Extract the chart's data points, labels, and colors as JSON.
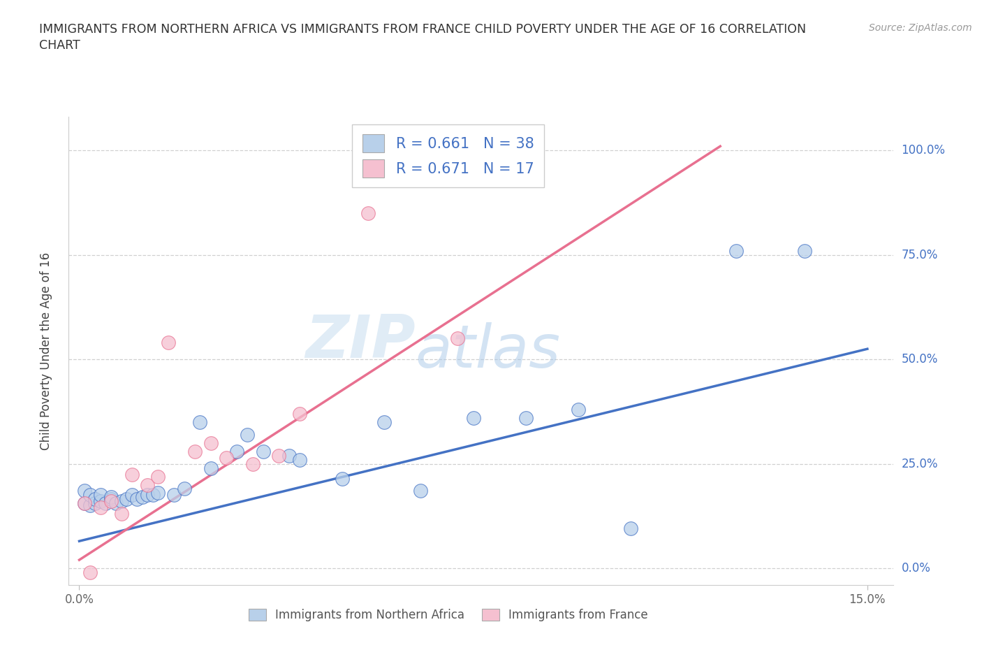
{
  "title_line1": "IMMIGRANTS FROM NORTHERN AFRICA VS IMMIGRANTS FROM FRANCE CHILD POVERTY UNDER THE AGE OF 16 CORRELATION",
  "title_line2": "CHART",
  "source": "Source: ZipAtlas.com",
  "ylabel": "Child Poverty Under the Age of 16",
  "xlim": [
    -0.002,
    0.155
  ],
  "ylim": [
    -0.04,
    1.08
  ],
  "ytick_vals": [
    0.0,
    0.25,
    0.5,
    0.75,
    1.0
  ],
  "ytick_labels": [
    "0.0%",
    "25.0%",
    "50.0%",
    "75.0%",
    "100.0%"
  ],
  "xtick_vals": [
    0.0,
    0.15
  ],
  "xtick_labels": [
    "0.0%",
    "15.0%"
  ],
  "color_blue": "#b8d0ea",
  "color_pink": "#f5c0d0",
  "line_blue": "#4472c4",
  "line_pink": "#e87090",
  "R_blue": 0.661,
  "N_blue": 38,
  "R_pink": 0.671,
  "N_pink": 17,
  "legend_label_blue": "Immigrants from Northern Africa",
  "legend_label_pink": "Immigrants from France",
  "watermark_zip": "ZIP",
  "watermark_atlas": "atlas",
  "blue_scatter_x": [
    0.001,
    0.001,
    0.002,
    0.002,
    0.003,
    0.003,
    0.004,
    0.004,
    0.005,
    0.006,
    0.006,
    0.007,
    0.008,
    0.009,
    0.01,
    0.011,
    0.012,
    0.013,
    0.014,
    0.015,
    0.018,
    0.02,
    0.023,
    0.025,
    0.03,
    0.032,
    0.035,
    0.04,
    0.042,
    0.05,
    0.058,
    0.065,
    0.075,
    0.085,
    0.095,
    0.105,
    0.125,
    0.138
  ],
  "blue_scatter_y": [
    0.155,
    0.185,
    0.15,
    0.175,
    0.155,
    0.165,
    0.16,
    0.175,
    0.155,
    0.165,
    0.17,
    0.155,
    0.16,
    0.165,
    0.175,
    0.165,
    0.17,
    0.175,
    0.175,
    0.18,
    0.175,
    0.19,
    0.35,
    0.24,
    0.28,
    0.32,
    0.28,
    0.27,
    0.26,
    0.215,
    0.35,
    0.185,
    0.36,
    0.36,
    0.38,
    0.095,
    0.76,
    0.76
  ],
  "pink_scatter_x": [
    0.001,
    0.002,
    0.004,
    0.006,
    0.008,
    0.01,
    0.013,
    0.015,
    0.017,
    0.022,
    0.025,
    0.028,
    0.033,
    0.038,
    0.042,
    0.055,
    0.072
  ],
  "pink_scatter_y": [
    0.155,
    -0.01,
    0.145,
    0.16,
    0.13,
    0.225,
    0.2,
    0.22,
    0.54,
    0.28,
    0.3,
    0.265,
    0.25,
    0.27,
    0.37,
    0.85,
    0.55
  ],
  "blue_line_x": [
    0.0,
    0.15
  ],
  "blue_line_y": [
    0.065,
    0.525
  ],
  "pink_line_x": [
    0.0,
    0.122
  ],
  "pink_line_y": [
    0.02,
    1.01
  ]
}
